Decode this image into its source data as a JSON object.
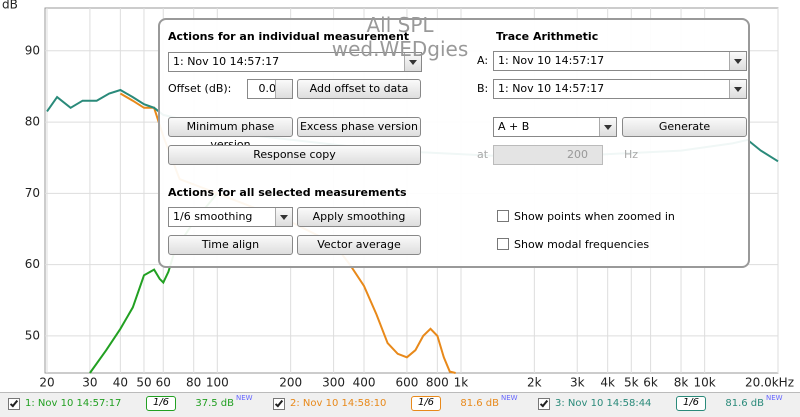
{
  "graph": {
    "y_axis_label": "dB",
    "ylim": [
      44.8,
      96
    ],
    "yticks": [
      90,
      80,
      70,
      60,
      50
    ],
    "xlim": [
      20,
      20000
    ],
    "log_x": true,
    "xticks": [
      20,
      30,
      40,
      50,
      60,
      80,
      100,
      200,
      300,
      400,
      600,
      800,
      {
        "value": 1000,
        "label": "1k"
      },
      {
        "value": 2000,
        "label": "2k"
      },
      {
        "value": 3000,
        "label": "3k"
      },
      {
        "value": 4000,
        "label": "4k"
      },
      {
        "value": 5000,
        "label": "5k"
      },
      {
        "value": 6000,
        "label": "6k"
      },
      {
        "value": 8000,
        "label": "8k"
      },
      {
        "value": 10000,
        "label": "10k"
      },
      {
        "value": 20000,
        "label": "20.0kHz"
      }
    ],
    "series": [
      {
        "name": "1: Nov 10 14:57:17",
        "color": "#22a022",
        "x": [
          30,
          35,
          40,
          45,
          50,
          55,
          58,
          60,
          63,
          67,
          80,
          100
        ],
        "values": [
          44.8,
          48,
          51,
          54,
          58.5,
          59.3,
          58,
          57.5,
          59,
          62,
          66,
          70
        ]
      },
      {
        "name": "2: Nov 10 14:58:10",
        "color": "#e8891a",
        "x": [
          40,
          45,
          50,
          55,
          60,
          70,
          100,
          200,
          300,
          350,
          400,
          450,
          500,
          550,
          600,
          650,
          700,
          750,
          800,
          850,
          900,
          950
        ],
        "values": [
          84,
          83,
          82,
          82,
          78,
          72,
          70,
          66,
          63,
          60,
          57,
          53,
          49,
          47.5,
          47,
          48,
          50,
          51,
          50,
          47,
          45,
          44.8
        ]
      },
      {
        "name": "3: Nov 10 14:58:44",
        "color": "#2a8a7a",
        "x": [
          20,
          22,
          25,
          28,
          32,
          36,
          40,
          45,
          50,
          55,
          60,
          80,
          150,
          500,
          2000,
          8000,
          13000,
          15000,
          17000,
          20000
        ],
        "values": [
          81.5,
          83.5,
          82,
          83,
          83,
          84,
          84.5,
          83.5,
          82.5,
          82,
          81,
          80,
          78,
          76,
          75,
          76,
          77,
          77.5,
          76,
          74.5
        ]
      }
    ]
  },
  "overlay": {
    "title": "All SPL",
    "subtitle": "wed.WEDgies"
  },
  "dialog": {
    "individual": {
      "heading": "Actions for an individual measurement",
      "measurement": "1: Nov 10 14:57:17",
      "offset_label": "Offset (dB):",
      "offset": "0.0",
      "add_offset": "Add offset to data",
      "min_phase": "Minimum phase version",
      "excess_phase": "Excess phase version",
      "response_copy": "Response copy"
    },
    "selected": {
      "heading": "Actions for all selected measurements",
      "smoothing": "1/6 smoothing",
      "apply_smoothing": "Apply smoothing",
      "time_align": "Time align",
      "vector_average": "Vector average"
    },
    "trace": {
      "heading": "Trace Arithmetic",
      "a_label": "A:",
      "a": "1: Nov 10 14:57:17",
      "b_label": "B:",
      "b": "1: Nov 10 14:57:17",
      "operation": "A + B",
      "generate": "Generate",
      "at_label": "at",
      "at_value": "200",
      "at_unit": "Hz"
    },
    "options": {
      "show_points": "Show points when zoomed in",
      "show_modal": "Show modal frequencies"
    }
  },
  "legend": [
    {
      "label": "1: Nov 10 14:57:17",
      "smoothing": "1/6",
      "level": "37.5 dB",
      "badge": "NEW"
    },
    {
      "label": "2: Nov 10 14:58:10",
      "smoothing": "1/6",
      "level": "81.6 dB",
      "badge": "NEW"
    },
    {
      "label": "3: Nov 10 14:58:44",
      "smoothing": "1/6",
      "level": "81.6 dB",
      "badge": "NEW"
    }
  ]
}
